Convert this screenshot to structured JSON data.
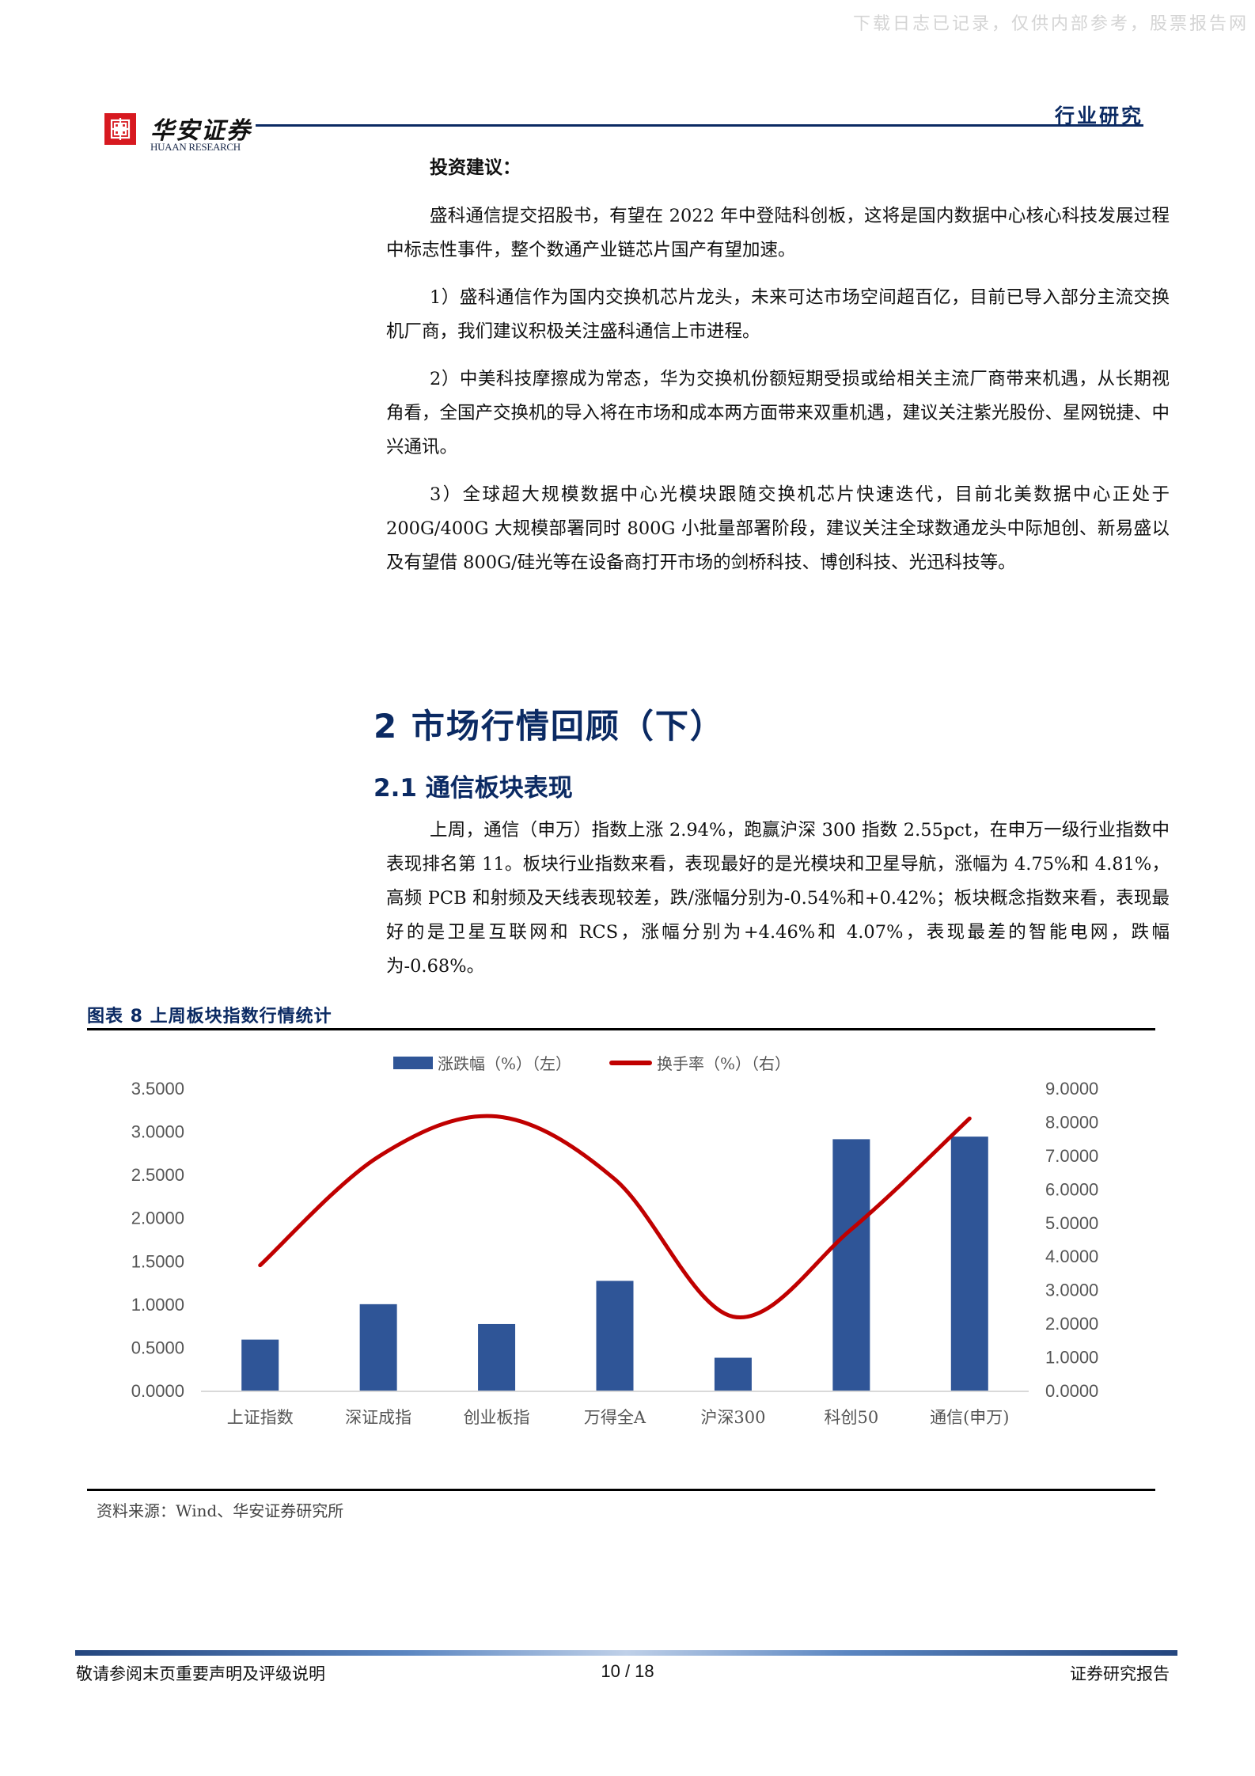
{
  "watermark": "下载日志已记录，仅供内部参考，股票报告网",
  "header": {
    "logo_cn": "华安证券",
    "logo_en": "HUAAN RESEARCH",
    "tag": "行业研究"
  },
  "investment": {
    "title": "投资建议：",
    "paragraphs": [
      "盛科通信提交招股书，有望在 2022 年中登陆科创板，这将是国内数据中心核心科技发展过程中标志性事件，整个数通产业链芯片国产有望加速。",
      "1）盛科通信作为国内交换机芯片龙头，未来可达市场空间超百亿，目前已导入部分主流交换机厂商，我们建议积极关注盛科通信上市进程。",
      "2）中美科技摩擦成为常态，华为交换机份额短期受损或给相关主流厂商带来机遇，从长期视角看，全国产交换机的导入将在市场和成本两方面带来双重机遇，建议关注紫光股份、星网锐捷、中兴通讯。",
      "3）全球超大规模数据中心光模块跟随交换机芯片快速迭代，目前北美数据中心正处于 200G/400G 大规模部署同时 800G 小批量部署阶段，建议关注全球数通龙头中际旭创、新易盛以及有望借 800G/硅光等在设备商打开市场的剑桥科技、博创科技、光迅科技等。"
    ]
  },
  "section": {
    "h1": "2 市场行情回顾（下）",
    "h2": "2.1 通信板块表现",
    "paragraph": "上周，通信（申万）指数上涨 2.94%，跑赢沪深 300 指数 2.55pct，在申万一级行业指数中表现排名第 11。板块行业指数来看，表现最好的是光模块和卫星导航，涨幅为 4.75%和 4.81%，高频 PCB 和射频及天线表现较差，跌/涨幅分别为-0.54%和+0.42%；板块概念指数来看，表现最好的是卫星互联网和 RCS，涨幅分别为+4.46%和 4.07%，表现最差的智能电网，跌幅为-0.68%。"
  },
  "figure": {
    "title": "图表 8 上周板块指数行情统计",
    "source": "资料来源：Wind、华安证券研究所"
  },
  "chart_data": {
    "type": "bar",
    "title": "上周板块指数行情统计",
    "categories": [
      "上证指数",
      "深证成指",
      "创业板指",
      "万得全A",
      "沪深300",
      "科创50",
      "通信(申万)"
    ],
    "series": [
      {
        "name": "涨跌幅（%）（左）",
        "type": "bar",
        "axis": "left",
        "color": "#2f5597",
        "values": [
          0.59,
          1.0,
          0.77,
          1.27,
          0.38,
          2.91,
          2.94
        ]
      },
      {
        "name": "换手率（%）（右）",
        "type": "line",
        "axis": "right",
        "color": "#c00000",
        "smooth": true,
        "values": [
          3.73,
          6.96,
          8.16,
          6.29,
          2.2,
          4.8,
          8.1
        ]
      }
    ],
    "left_axis": {
      "min": 0,
      "max": 3.5,
      "step": 0.5,
      "ticks": [
        "0.0000",
        "0.5000",
        "1.0000",
        "1.5000",
        "2.0000",
        "2.5000",
        "3.0000",
        "3.5000"
      ]
    },
    "right_axis": {
      "min": 0,
      "max": 9,
      "step": 1,
      "ticks": [
        "0.0000",
        "1.0000",
        "2.0000",
        "3.0000",
        "4.0000",
        "5.0000",
        "6.0000",
        "7.0000",
        "8.0000",
        "9.0000"
      ]
    },
    "legend_position": "top",
    "grid": false,
    "xlabel": "",
    "ylabel": ""
  },
  "footer": {
    "left": "敬请参阅末页重要声明及评级说明",
    "page": "10 / 18",
    "right": "证券研究报告"
  }
}
